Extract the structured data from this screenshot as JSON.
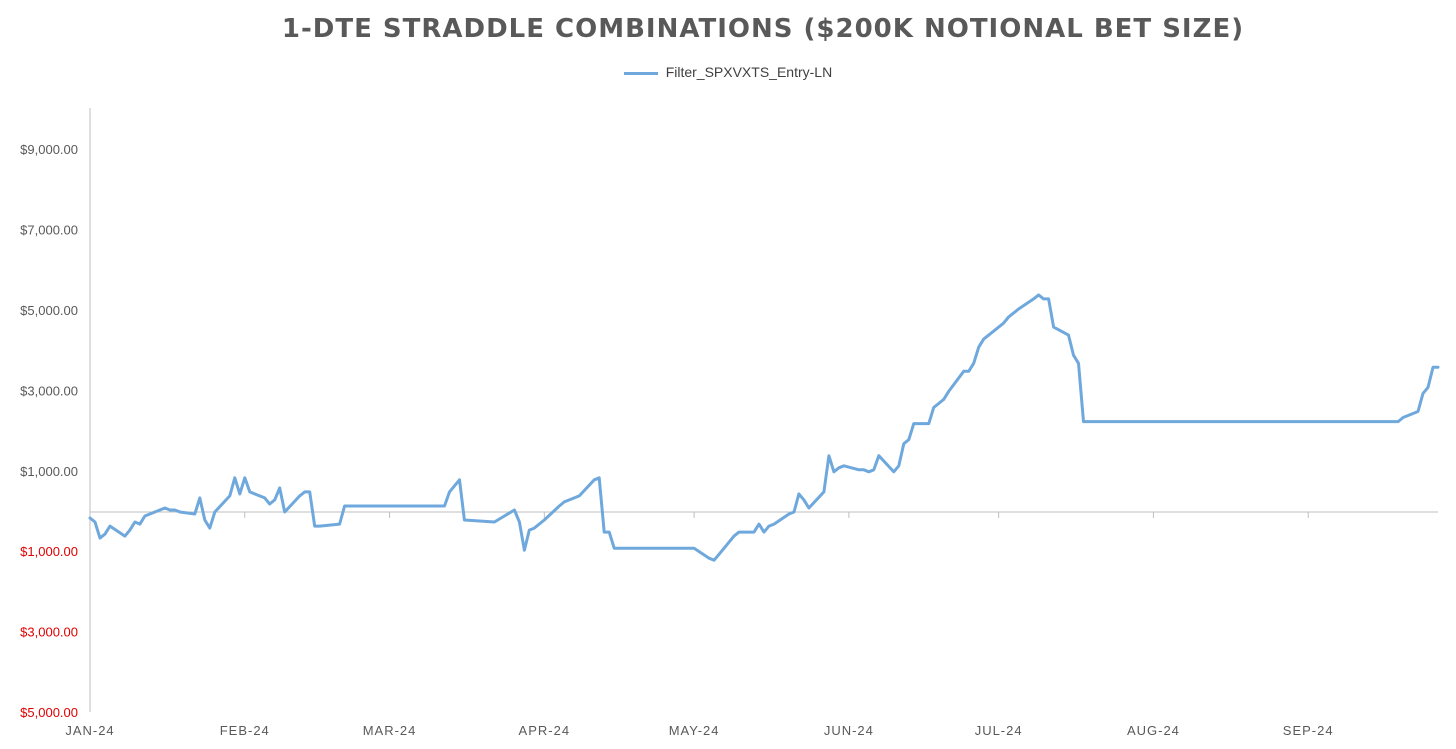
{
  "chart_data": {
    "type": "line",
    "title": "1-DTE STRADDLE COMBINATIONS ($200K NOTIONAL BET SIZE)",
    "xlabel": "",
    "ylabel": "",
    "ylim": [
      -5000,
      10000
    ],
    "grid": false,
    "legend_position": "top-center",
    "x_tick_labels": [
      "JAN-24",
      "FEB-24",
      "MAR-24",
      "APR-24",
      "MAY-24",
      "JUN-24",
      "JUL-24",
      "AUG-24",
      "SEP-24"
    ],
    "x_tick_values": [
      "2024-01-01",
      "2024-02-01",
      "2024-03-01",
      "2024-04-01",
      "2024-05-01",
      "2024-06-01",
      "2024-07-01",
      "2024-08-01",
      "2024-09-01"
    ],
    "x_range": [
      "2024-01-01",
      "2024-09-27"
    ],
    "y_ticks": [
      {
        "value": 9000,
        "label": "$9,000.00",
        "negative": false
      },
      {
        "value": 7000,
        "label": "$7,000.00",
        "negative": false
      },
      {
        "value": 5000,
        "label": "$5,000.00",
        "negative": false
      },
      {
        "value": 3000,
        "label": "$3,000.00",
        "negative": false
      },
      {
        "value": 1000,
        "label": "$1,000.00",
        "negative": false
      },
      {
        "value": -1000,
        "label": "$1,000.00",
        "negative": true
      },
      {
        "value": -3000,
        "label": "$3,000.00",
        "negative": true
      },
      {
        "value": -5000,
        "label": "$5,000.00",
        "negative": true
      }
    ],
    "series": [
      {
        "name": "Filter_SPXVXTS_Entry-LN",
        "color": "#6FA8DC",
        "x": [
          "2024-01-01",
          "2024-01-02",
          "2024-01-03",
          "2024-01-04",
          "2024-01-05",
          "2024-01-08",
          "2024-01-09",
          "2024-01-10",
          "2024-01-11",
          "2024-01-12",
          "2024-01-16",
          "2024-01-17",
          "2024-01-18",
          "2024-01-19",
          "2024-01-22",
          "2024-01-23",
          "2024-01-24",
          "2024-01-25",
          "2024-01-26",
          "2024-01-29",
          "2024-01-30",
          "2024-01-31",
          "2024-02-01",
          "2024-02-02",
          "2024-02-05",
          "2024-02-06",
          "2024-02-07",
          "2024-02-08",
          "2024-02-09",
          "2024-02-12",
          "2024-02-13",
          "2024-02-14",
          "2024-02-15",
          "2024-02-16",
          "2024-02-20",
          "2024-02-21",
          "2024-02-22",
          "2024-02-23",
          "2024-02-26",
          "2024-02-27",
          "2024-03-12",
          "2024-03-13",
          "2024-03-15",
          "2024-03-16",
          "2024-03-22",
          "2024-03-26",
          "2024-03-27",
          "2024-03-28",
          "2024-03-29",
          "2024-03-30",
          "2024-04-01",
          "2024-04-04",
          "2024-04-05",
          "2024-04-08",
          "2024-04-11",
          "2024-04-12",
          "2024-04-13",
          "2024-04-14",
          "2024-04-15",
          "2024-04-20",
          "2024-04-21",
          "2024-04-22",
          "2024-04-23",
          "2024-05-01",
          "2024-05-04",
          "2024-05-05",
          "2024-05-06",
          "2024-05-07",
          "2024-05-08",
          "2024-05-09",
          "2024-05-10",
          "2024-05-13",
          "2024-05-14",
          "2024-05-15",
          "2024-05-16",
          "2024-05-17",
          "2024-05-20",
          "2024-05-21",
          "2024-05-22",
          "2024-05-23",
          "2024-05-24",
          "2024-05-27",
          "2024-05-28",
          "2024-05-29",
          "2024-05-30",
          "2024-05-31",
          "2024-06-03",
          "2024-06-04",
          "2024-06-05",
          "2024-06-06",
          "2024-06-07",
          "2024-06-10",
          "2024-06-11",
          "2024-06-12",
          "2024-06-13",
          "2024-06-14",
          "2024-06-17",
          "2024-06-18",
          "2024-06-19",
          "2024-06-20",
          "2024-06-21",
          "2024-06-24",
          "2024-06-25",
          "2024-06-26",
          "2024-06-27",
          "2024-06-28",
          "2024-07-01",
          "2024-07-02",
          "2024-07-03",
          "2024-07-05",
          "2024-07-08",
          "2024-07-09",
          "2024-07-10",
          "2024-07-11",
          "2024-07-12",
          "2024-07-15",
          "2024-07-16",
          "2024-07-17",
          "2024-07-18",
          "2024-07-19",
          "2024-07-20",
          "2024-07-21",
          "2024-09-19",
          "2024-09-20",
          "2024-09-23",
          "2024-09-24",
          "2024-09-25",
          "2024-09-26",
          "2024-09-27"
        ],
        "y": [
          -150,
          -250,
          -650,
          -550,
          -350,
          -600,
          -450,
          -250,
          -300,
          -100,
          100,
          50,
          50,
          0,
          -50,
          350,
          -200,
          -400,
          0,
          400,
          850,
          450,
          850,
          500,
          350,
          200,
          300,
          600,
          0,
          400,
          500,
          500,
          -350,
          -350,
          -300,
          150,
          150,
          150,
          150,
          150,
          150,
          500,
          800,
          -200,
          -250,
          50,
          -250,
          -950,
          -450,
          -400,
          -200,
          150,
          250,
          400,
          800,
          850,
          -500,
          -500,
          -900,
          -900,
          -900,
          -900,
          -900,
          -900,
          -1150,
          -1200,
          -1050,
          -900,
          -750,
          -600,
          -500,
          -500,
          -300,
          -500,
          -350,
          -300,
          -50,
          0,
          450,
          300,
          100,
          500,
          1400,
          1000,
          1100,
          1150,
          1050,
          1050,
          1000,
          1050,
          1400,
          1000,
          1150,
          1700,
          1800,
          2200,
          2200,
          2600,
          2700,
          2800,
          3000,
          3500,
          3500,
          3700,
          4100,
          4300,
          4600,
          4700,
          4850,
          5050,
          5300,
          5400,
          5300,
          5300,
          4600,
          4400,
          3900,
          3700,
          2250,
          2250,
          2250,
          2250,
          2250,
          2350,
          2500,
          2950,
          3100,
          3600,
          3600
        ]
      }
    ]
  }
}
